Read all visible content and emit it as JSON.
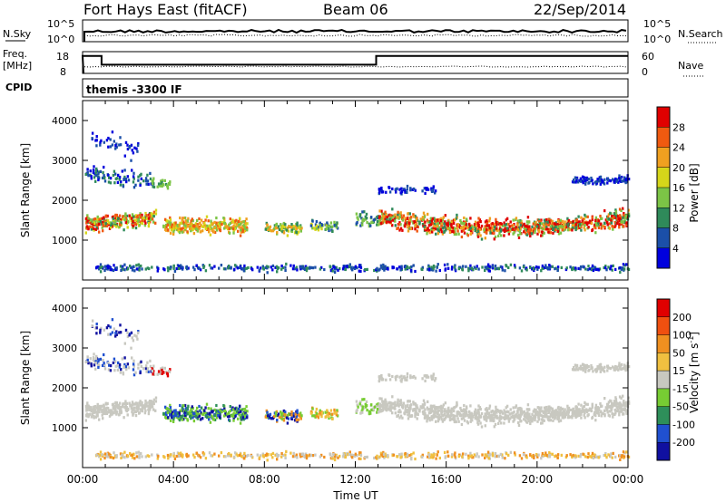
{
  "header": {
    "site": "Fort Hays East (fitACF)",
    "beam": "Beam 06",
    "date": "22/Sep/2014"
  },
  "sky_panel": {
    "left_label": "N.Sky",
    "right_label": "N.Search",
    "left_ticks": [
      "10^5",
      "10^0"
    ],
    "right_ticks": [
      "10^5",
      "10^0"
    ]
  },
  "freq_panel": {
    "left_label_1": "Freq.",
    "left_label_2": "[MHz]",
    "right_label": "Nave",
    "left_ticks": [
      "18",
      "8"
    ],
    "right_ticks": [
      "60",
      "0"
    ]
  },
  "cpid": {
    "label": "CPID",
    "value": "themis -3300 IF"
  },
  "chart_data": [
    {
      "type": "line",
      "title": "N.Sky / N.Search",
      "xlabel": "Time UT",
      "ylabel": "N.Sky",
      "yscale": "log",
      "ylim": [
        1,
        100000
      ],
      "note": "near-constant trace at top of panel"
    },
    {
      "type": "line",
      "title": "Freq / Nave",
      "xlabel": "Time UT",
      "ylabel": "Freq. [MHz]",
      "series": [
        {
          "name": "Freq.",
          "x": [
            "00:00",
            "00:50",
            "00:50",
            "12:55",
            "12:55",
            "24:00"
          ],
          "values": [
            16,
            16,
            12,
            12,
            16,
            16
          ]
        }
      ],
      "ylim": [
        8,
        18
      ]
    },
    {
      "type": "heatmap",
      "title": "Power",
      "ylabel": "Slant Range [km]",
      "xlabel": "Time UT",
      "xlim": [
        "00:00",
        "24:00"
      ],
      "ylim": [
        0,
        4500
      ],
      "colorbar_label": "Power [dB]",
      "colorbar_ticks": [
        "28",
        "24",
        "20",
        "16",
        "12",
        "8",
        "4"
      ],
      "colors": [
        "#0000dd",
        "#1b4fa8",
        "#2f8a5a",
        "#7cc446",
        "#d6d61a",
        "#f0a020",
        "#f05a10",
        "#e00000"
      ]
    },
    {
      "type": "heatmap",
      "title": "Velocity",
      "ylabel": "Slant Range [km]",
      "xlabel": "Time UT",
      "xlim": [
        "00:00",
        "24:00"
      ],
      "ylim": [
        0,
        4500
      ],
      "colorbar_label": "Velocity [m s^-1]",
      "colorbar_ticks": [
        "200",
        "100",
        "50",
        "15",
        "-15",
        "-50",
        "-100",
        "-200"
      ],
      "colors": [
        "#1010a0",
        "#2050d0",
        "#2e8f5a",
        "#77cc33",
        "#c8c8c0",
        "#f0c040",
        "#f09020",
        "#f05010",
        "#e00000"
      ]
    }
  ],
  "axes": {
    "x_ticks": [
      "00:00",
      "04:00",
      "08:00",
      "12:00",
      "16:00",
      "20:00",
      "00:00"
    ],
    "x_label": "Time UT",
    "y_label": "Slant Range [km]",
    "y_ticks": [
      "4000",
      "3000",
      "2000",
      "1000"
    ]
  },
  "power_colorbar": {
    "label": "Power [dB]",
    "ticks": [
      "28",
      "24",
      "20",
      "16",
      "12",
      "8",
      "4"
    ]
  },
  "velocity_colorbar": {
    "label": "Velocity [m s",
    "label_sup": "-1",
    "label_end": "]",
    "ticks": [
      "200",
      "100",
      "50",
      "15",
      "-15",
      "-50",
      "-100",
      "-200"
    ]
  }
}
